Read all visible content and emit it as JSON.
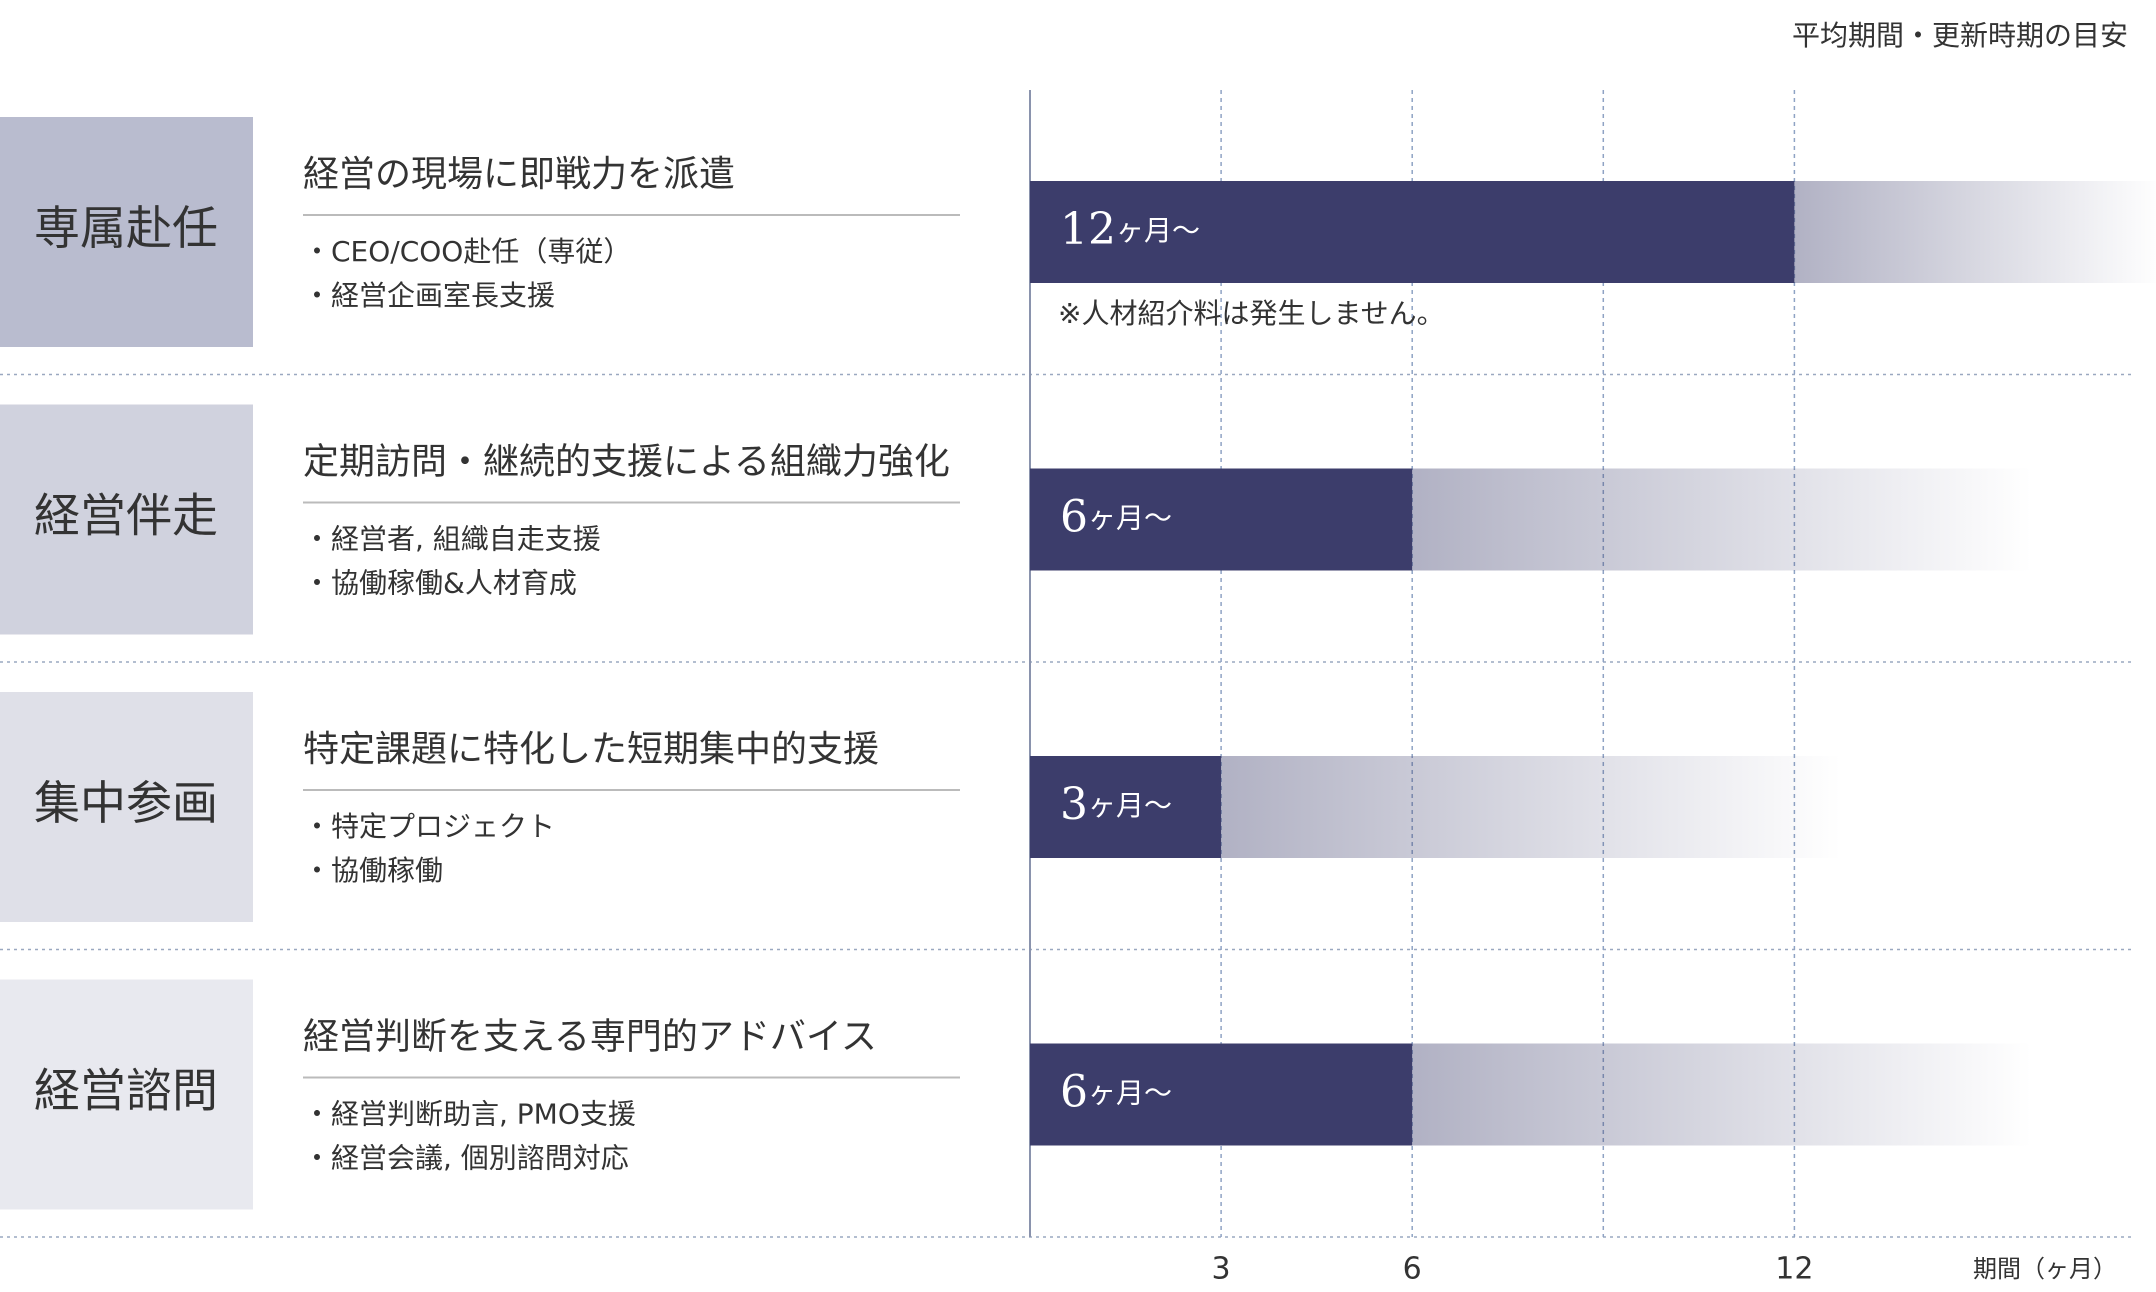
{
  "chart_data": {
    "type": "bar",
    "header": "平均期間・更新時期の目安",
    "categories": [
      "専属赴任",
      "経営伴走",
      "集中参画",
      "経営諮問"
    ],
    "category_colors": [
      "#b9bccf",
      "#d0d2de",
      "#dfe0e8",
      "#e8e9ef"
    ],
    "titles": [
      "経営の現場に即戦力を派遣",
      "定期訪問・継続的支援による組織力強化",
      "特定課題に特化した短期集中的支援",
      "経営判断を支える専門的アドバイス"
    ],
    "bullets": [
      [
        "・CEO/COO赴任（専従）",
        "・経営企画室長支援"
      ],
      [
        "・経営者, 組織自走支援",
        "・協働稼働&人材育成"
      ],
      [
        "・特定プロジェクト",
        "・協働稼働"
      ],
      [
        "・経営判断助言, PMO支援",
        "・経営会議, 個別諮問対応"
      ]
    ],
    "values": [
      12,
      6,
      3,
      6
    ],
    "value_labels": [
      "12ヶ月〜",
      "6ヶ月〜",
      "3ヶ月〜",
      "6ヶ月〜"
    ],
    "color": "#3c3d6b",
    "annotation": "※人材紹介料は発生しません。",
    "xlabel": "期間（ヶ月）",
    "xlim": [
      0,
      17.3
    ],
    "xticks": [
      3,
      6,
      12
    ],
    "xgrid": [
      3,
      6,
      9,
      12
    ]
  }
}
